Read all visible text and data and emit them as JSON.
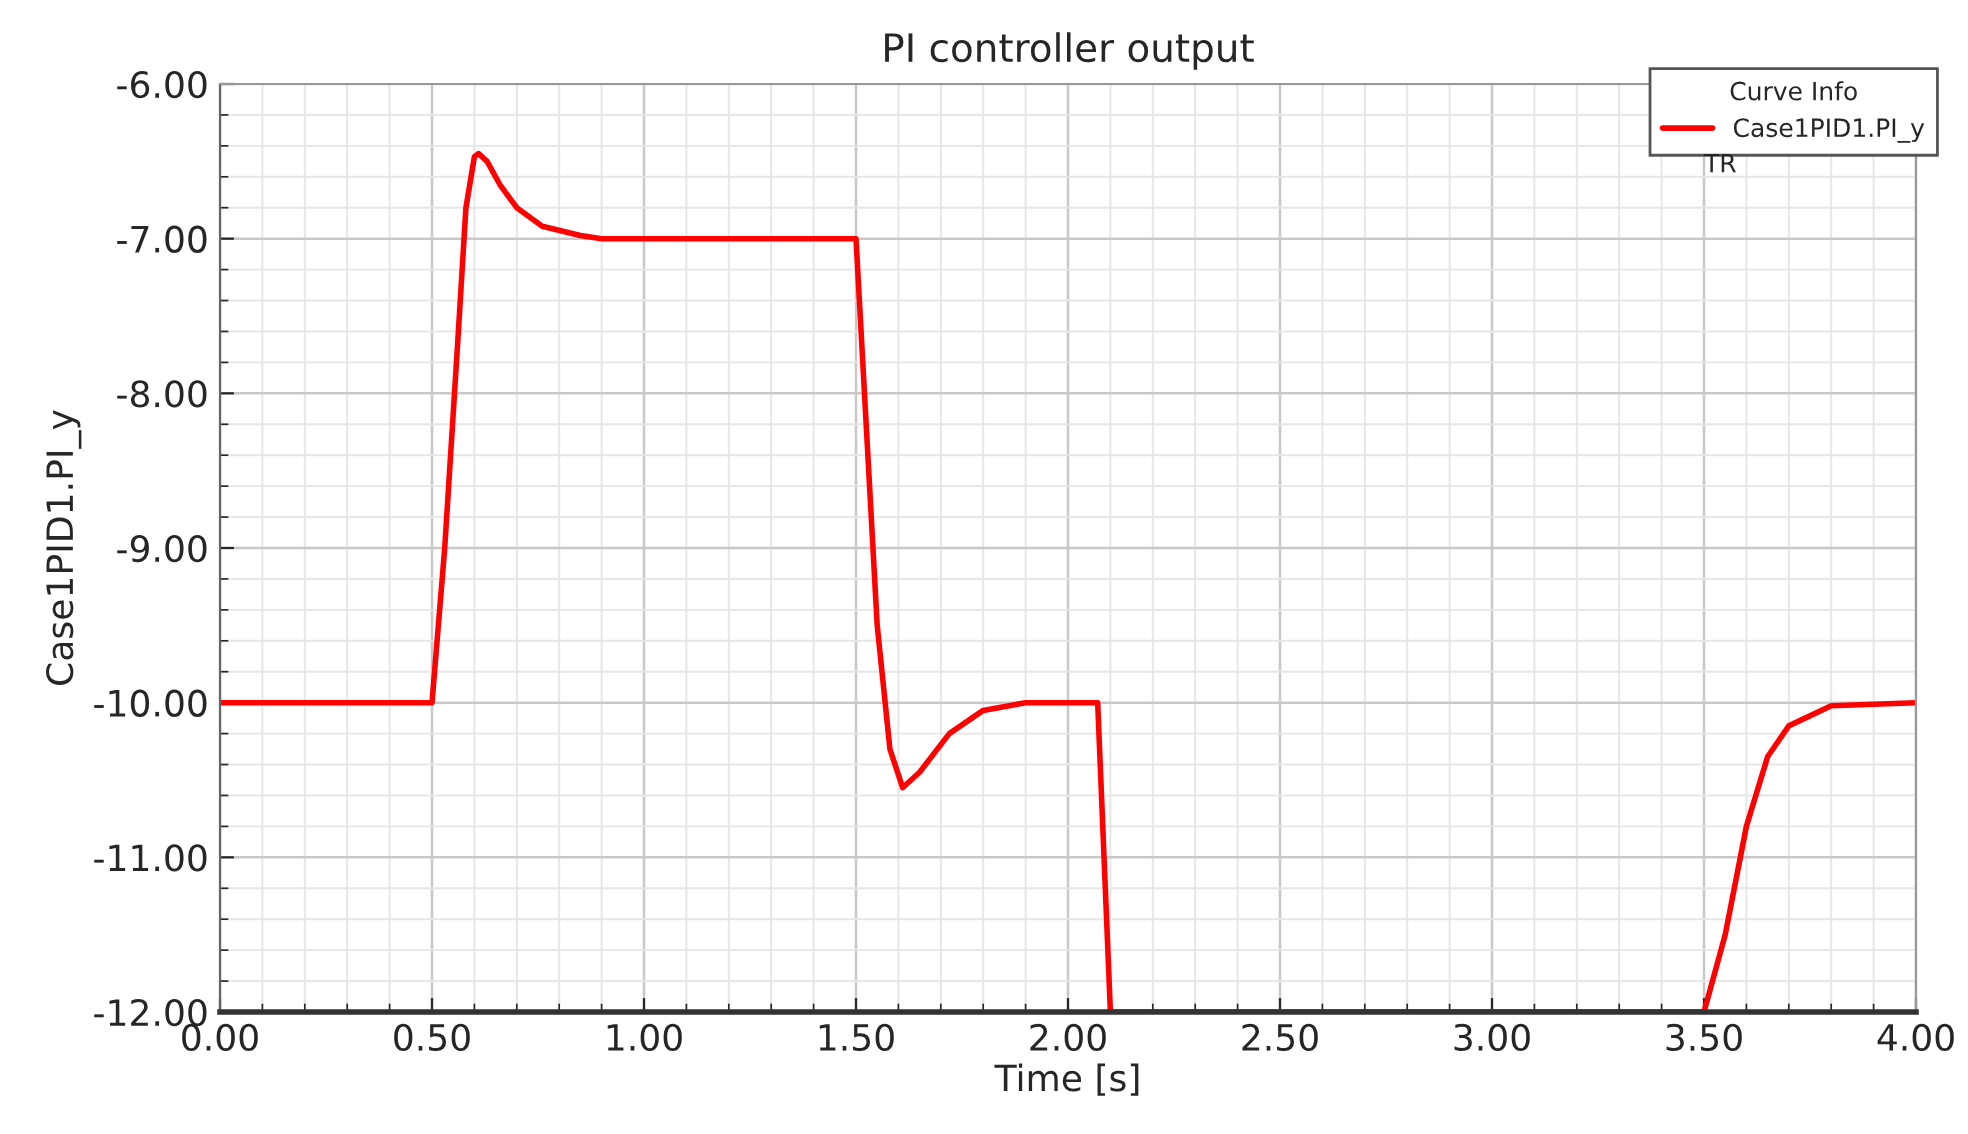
{
  "chart_data": {
    "type": "line",
    "title": "PI controller output",
    "xlabel": "Time [s]",
    "ylabel": "Case1PID1.PI_y",
    "legend_title": "Curve Info",
    "annotations": [
      "TR"
    ],
    "series": [
      {
        "name": "Case1PID1.PI_y",
        "color": "#ff0000",
        "x": [
          0,
          0.5,
          0.53,
          0.56,
          0.58,
          0.6,
          0.61,
          0.63,
          0.66,
          0.7,
          0.76,
          0.85,
          0.9,
          1.5,
          1.52,
          1.55,
          1.58,
          1.61,
          1.65,
          1.72,
          1.8,
          1.9,
          2.07,
          2.1,
          3.5,
          3.55,
          3.6,
          3.65,
          3.7,
          3.8,
          4.0
        ],
        "values": [
          -10,
          -10,
          -9,
          -7.7,
          -6.8,
          -6.47,
          -6.45,
          -6.5,
          -6.65,
          -6.8,
          -6.92,
          -6.98,
          -7,
          -7,
          -8,
          -9.5,
          -10.3,
          -10.55,
          -10.45,
          -10.2,
          -10.05,
          -10,
          -10,
          -12,
          -12,
          -11.5,
          -10.8,
          -10.35,
          -10.15,
          -10.02,
          -10
        ]
      }
    ],
    "xlim": [
      0,
      4
    ],
    "ylim": [
      -12,
      -6
    ],
    "xticks": [
      {
        "value": 0,
        "label": "0.00"
      },
      {
        "value": 0.5,
        "label": "0.50"
      },
      {
        "value": 1,
        "label": "1.00"
      },
      {
        "value": 1.5,
        "label": "1.50"
      },
      {
        "value": 2,
        "label": "2.00"
      },
      {
        "value": 2.5,
        "label": "2.50"
      },
      {
        "value": 3,
        "label": "3.00"
      },
      {
        "value": 3.5,
        "label": "3.50"
      },
      {
        "value": 4,
        "label": "4.00"
      }
    ],
    "yticks": [
      {
        "value": -12,
        "label": "-12.00"
      },
      {
        "value": -11,
        "label": "-11.00"
      },
      {
        "value": -10,
        "label": "-10.00"
      },
      {
        "value": -9,
        "label": "-9.00"
      },
      {
        "value": -8,
        "label": "-8.00"
      },
      {
        "value": -7,
        "label": "-7.00"
      },
      {
        "value": -6,
        "label": "-6.00"
      }
    ],
    "grid": true,
    "legend": "top right",
    "marker": "none",
    "line_style": "solid"
  }
}
